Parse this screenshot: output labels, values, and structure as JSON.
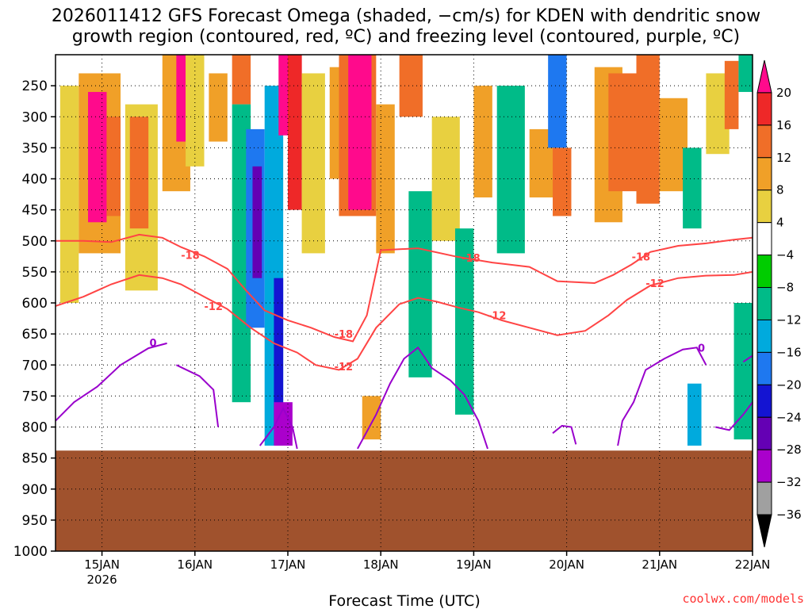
{
  "chart_data": {
    "type": "heatmap",
    "title_line1": "2026011412 GFS Forecast Omega (shaded, −cm/s) for KDEN with dendritic snow",
    "title_line2": "growth region (contoured, red, ºC) and freezing level (contoured, purple, ºC)",
    "xlabel": "Forecast Time (UTC)",
    "credit": "coolwx.com/models",
    "x_start_day": 14.5,
    "x_end_day": 22.0,
    "x_ticks": [
      {
        "day": 15,
        "label": "15JAN",
        "sub": "2026"
      },
      {
        "day": 16,
        "label": "16JAN",
        "sub": ""
      },
      {
        "day": 17,
        "label": "17JAN",
        "sub": ""
      },
      {
        "day": 18,
        "label": "18JAN",
        "sub": ""
      },
      {
        "day": 19,
        "label": "19JAN",
        "sub": ""
      },
      {
        "day": 20,
        "label": "20JAN",
        "sub": ""
      },
      {
        "day": 21,
        "label": "21JAN",
        "sub": ""
      },
      {
        "day": 22,
        "label": "22JAN",
        "sub": ""
      }
    ],
    "y_top_hpa": 200,
    "y_bottom_hpa": 1000,
    "y_ticks": [
      "250",
      "300",
      "350",
      "400",
      "450",
      "500",
      "550",
      "600",
      "650",
      "700",
      "750",
      "800",
      "850",
      "900",
      "950",
      "1000"
    ],
    "colorbar": {
      "labels": [
        "20",
        "16",
        "12",
        "8",
        "4",
        "−4",
        "−8",
        "−12",
        "−16",
        "−20",
        "−24",
        "−28",
        "−32",
        "−36"
      ],
      "colors": [
        "#ff0a8c",
        "#ee2828",
        "#f06e28",
        "#f0a028",
        "#e8d040",
        "#ffffff",
        "#00cc00",
        "#00bb88",
        "#00aadd",
        "#1e78f0",
        "#1414d2",
        "#6400b4",
        "#aa00cc",
        "#a0a0a0",
        "#000000"
      ]
    },
    "terrain": {
      "pressure_hpa": 838,
      "color": "#a0522d"
    },
    "omega_cells": [
      {
        "t0": 14.55,
        "t1": 14.75,
        "p0": 250,
        "p1": 600,
        "v": 4
      },
      {
        "t0": 14.75,
        "t1": 15.2,
        "p0": 230,
        "p1": 520,
        "v": 8
      },
      {
        "t0": 14.85,
        "t1": 15.05,
        "p0": 260,
        "p1": 470,
        "v": 20
      },
      {
        "t0": 15.05,
        "t1": 15.2,
        "p0": 300,
        "p1": 460,
        "v": 12
      },
      {
        "t0": 15.25,
        "t1": 15.6,
        "p0": 280,
        "p1": 580,
        "v": 4
      },
      {
        "t0": 15.3,
        "t1": 15.5,
        "p0": 300,
        "p1": 480,
        "v": 12
      },
      {
        "t0": 15.65,
        "t1": 15.95,
        "p0": 200,
        "p1": 420,
        "v": 8
      },
      {
        "t0": 15.8,
        "t1": 15.9,
        "p0": 200,
        "p1": 340,
        "v": 20
      },
      {
        "t0": 15.9,
        "t1": 16.1,
        "p0": 200,
        "p1": 380,
        "v": 4
      },
      {
        "t0": 16.15,
        "t1": 16.35,
        "p0": 230,
        "p1": 340,
        "v": 8
      },
      {
        "t0": 16.4,
        "t1": 16.6,
        "p0": 200,
        "p1": 280,
        "v": 12
      },
      {
        "t0": 16.4,
        "t1": 16.6,
        "p0": 280,
        "p1": 760,
        "v": -8
      },
      {
        "t0": 16.55,
        "t1": 16.75,
        "p0": 320,
        "p1": 640,
        "v": -16
      },
      {
        "t0": 16.62,
        "t1": 16.72,
        "p0": 380,
        "p1": 560,
        "v": -24
      },
      {
        "t0": 16.75,
        "t1": 16.95,
        "p0": 250,
        "p1": 830,
        "v": -12
      },
      {
        "t0": 16.85,
        "t1": 16.95,
        "p0": 560,
        "p1": 800,
        "v": -20
      },
      {
        "t0": 16.85,
        "t1": 17.05,
        "p0": 760,
        "p1": 830,
        "v": -28
      },
      {
        "t0": 16.9,
        "t1": 17.15,
        "p0": 200,
        "p1": 330,
        "v": 20
      },
      {
        "t0": 17.0,
        "t1": 17.15,
        "p0": 200,
        "p1": 450,
        "v": 16
      },
      {
        "t0": 17.15,
        "t1": 17.4,
        "p0": 230,
        "p1": 520,
        "v": 4
      },
      {
        "t0": 17.45,
        "t1": 17.65,
        "p0": 220,
        "p1": 400,
        "v": 8
      },
      {
        "t0": 17.55,
        "t1": 17.95,
        "p0": 200,
        "p1": 460,
        "v": 12
      },
      {
        "t0": 17.65,
        "t1": 17.9,
        "p0": 200,
        "p1": 450,
        "v": 20
      },
      {
        "t0": 17.95,
        "t1": 18.15,
        "p0": 280,
        "p1": 520,
        "v": 8
      },
      {
        "t0": 18.2,
        "t1": 18.45,
        "p0": 200,
        "p1": 300,
        "v": 12
      },
      {
        "t0": 17.8,
        "t1": 18.0,
        "p0": 750,
        "p1": 820,
        "v": 8
      },
      {
        "t0": 18.3,
        "t1": 18.55,
        "p0": 420,
        "p1": 720,
        "v": -8
      },
      {
        "t0": 18.55,
        "t1": 18.85,
        "p0": 300,
        "p1": 500,
        "v": 4
      },
      {
        "t0": 18.8,
        "t1": 19.0,
        "p0": 480,
        "p1": 780,
        "v": -8
      },
      {
        "t0": 19.0,
        "t1": 19.2,
        "p0": 250,
        "p1": 430,
        "v": 8
      },
      {
        "t0": 19.25,
        "t1": 19.55,
        "p0": 250,
        "p1": 520,
        "v": -8
      },
      {
        "t0": 19.6,
        "t1": 19.9,
        "p0": 320,
        "p1": 430,
        "v": 8
      },
      {
        "t0": 19.8,
        "t1": 20.0,
        "p0": 200,
        "p1": 350,
        "v": -16
      },
      {
        "t0": 19.85,
        "t1": 20.05,
        "p0": 350,
        "p1": 460,
        "v": 12
      },
      {
        "t0": 20.3,
        "t1": 20.6,
        "p0": 220,
        "p1": 470,
        "v": 8
      },
      {
        "t0": 20.45,
        "t1": 20.75,
        "p0": 230,
        "p1": 420,
        "v": 12
      },
      {
        "t0": 20.75,
        "t1": 21.0,
        "p0": 200,
        "p1": 440,
        "v": 12
      },
      {
        "t0": 21.0,
        "t1": 21.3,
        "p0": 270,
        "p1": 420,
        "v": 8
      },
      {
        "t0": 21.25,
        "t1": 21.45,
        "p0": 350,
        "p1": 480,
        "v": -8
      },
      {
        "t0": 21.5,
        "t1": 21.75,
        "p0": 230,
        "p1": 360,
        "v": 4
      },
      {
        "t0": 21.7,
        "t1": 21.85,
        "p0": 210,
        "p1": 320,
        "v": 12
      },
      {
        "t0": 21.85,
        "t1": 22.0,
        "p0": 200,
        "p1": 260,
        "v": -8
      },
      {
        "t0": 21.3,
        "t1": 21.45,
        "p0": 730,
        "p1": 830,
        "v": -12
      },
      {
        "t0": 21.8,
        "t1": 22.0,
        "p0": 600,
        "p1": 820,
        "v": -8
      }
    ],
    "dgz_top": {
      "label": "-18",
      "color": "#ff4444",
      "points": [
        [
          14.5,
          500
        ],
        [
          14.8,
          500
        ],
        [
          15.1,
          502
        ],
        [
          15.4,
          490
        ],
        [
          15.65,
          495
        ],
        [
          15.85,
          510
        ],
        [
          16.1,
          525
        ],
        [
          16.35,
          545
        ],
        [
          16.55,
          580
        ],
        [
          16.75,
          612
        ],
        [
          17.0,
          628
        ],
        [
          17.25,
          640
        ],
        [
          17.5,
          655
        ],
        [
          17.7,
          662
        ],
        [
          17.85,
          620
        ],
        [
          18.0,
          515
        ],
        [
          18.4,
          512
        ],
        [
          18.8,
          525
        ],
        [
          19.2,
          535
        ],
        [
          19.6,
          542
        ],
        [
          19.9,
          565
        ],
        [
          20.3,
          568
        ],
        [
          20.5,
          555
        ],
        [
          20.7,
          538
        ],
        [
          20.9,
          518
        ],
        [
          21.2,
          508
        ],
        [
          21.5,
          504
        ],
        [
          21.8,
          498
        ],
        [
          22.0,
          495
        ]
      ],
      "label_positions": [
        [
          15.95,
          523
        ],
        [
          18.97,
          527
        ],
        [
          17.6,
          650
        ],
        [
          20.8,
          525
        ]
      ]
    },
    "dgz_bottom": {
      "label": "-12",
      "color": "#ff4444",
      "points": [
        [
          14.5,
          605
        ],
        [
          14.8,
          590
        ],
        [
          15.1,
          570
        ],
        [
          15.4,
          555
        ],
        [
          15.65,
          560
        ],
        [
          15.85,
          570
        ],
        [
          16.1,
          590
        ],
        [
          16.35,
          610
        ],
        [
          16.6,
          640
        ],
        [
          16.85,
          665
        ],
        [
          17.1,
          680
        ],
        [
          17.3,
          700
        ],
        [
          17.55,
          708
        ],
        [
          17.75,
          690
        ],
        [
          17.95,
          640
        ],
        [
          18.2,
          602
        ],
        [
          18.4,
          592
        ],
        [
          18.6,
          598
        ],
        [
          18.85,
          608
        ],
        [
          19.05,
          615
        ],
        [
          19.3,
          628
        ],
        [
          19.6,
          640
        ],
        [
          19.9,
          652
        ],
        [
          20.2,
          645
        ],
        [
          20.45,
          620
        ],
        [
          20.65,
          595
        ],
        [
          20.9,
          572
        ],
        [
          21.2,
          560
        ],
        [
          21.5,
          556
        ],
        [
          21.8,
          555
        ],
        [
          22.0,
          550
        ]
      ],
      "label_positions": [
        [
          16.2,
          605
        ],
        [
          17.6,
          702
        ],
        [
          19.25,
          620
        ],
        [
          20.95,
          568
        ]
      ]
    },
    "freezing_level": {
      "label": "0",
      "color": "#9900cc",
      "segments": [
        [
          [
            14.5,
            790
          ],
          [
            14.7,
            760
          ],
          [
            14.95,
            735
          ],
          [
            15.2,
            700
          ],
          [
            15.5,
            673
          ],
          [
            15.7,
            665
          ]
        ],
        [
          [
            15.8,
            700
          ],
          [
            16.05,
            718
          ],
          [
            16.2,
            740
          ],
          [
            16.25,
            800
          ]
        ],
        [
          [
            16.7,
            830
          ],
          [
            16.85,
            800
          ],
          [
            16.95,
            770
          ],
          [
            17.05,
            800
          ],
          [
            17.1,
            835
          ]
        ],
        [
          [
            17.75,
            835
          ],
          [
            17.95,
            780
          ],
          [
            18.1,
            730
          ],
          [
            18.25,
            690
          ],
          [
            18.4,
            672
          ],
          [
            18.55,
            705
          ],
          [
            18.75,
            725
          ],
          [
            18.9,
            748
          ],
          [
            19.05,
            790
          ],
          [
            19.15,
            835
          ]
        ],
        [
          [
            19.85,
            810
          ],
          [
            19.95,
            798
          ],
          [
            20.05,
            800
          ],
          [
            20.1,
            828
          ]
        ],
        [
          [
            20.55,
            830
          ],
          [
            20.6,
            790
          ],
          [
            20.72,
            760
          ],
          [
            20.85,
            708
          ],
          [
            21.05,
            690
          ],
          [
            21.25,
            675
          ],
          [
            21.4,
            672
          ],
          [
            21.5,
            700
          ]
        ],
        [
          [
            21.6,
            800
          ],
          [
            21.75,
            805
          ],
          [
            21.9,
            780
          ],
          [
            22.0,
            760
          ]
        ],
        [
          [
            21.9,
            695
          ],
          [
            22.0,
            685
          ]
        ]
      ],
      "label_positions": [
        [
          15.55,
          664
        ],
        [
          21.45,
          672
        ]
      ]
    }
  }
}
